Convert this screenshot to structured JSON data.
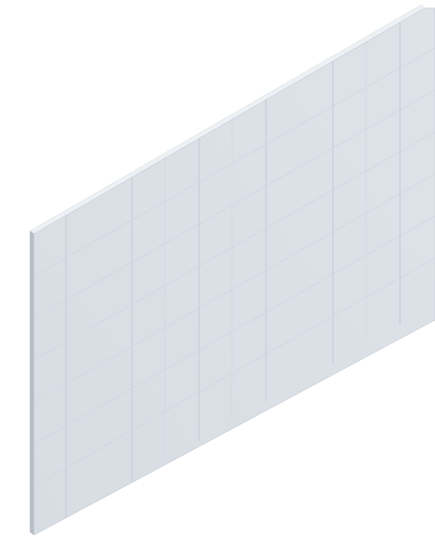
{
  "scene": {
    "object": "wall-panel",
    "view": "isometric",
    "colors": {
      "background": "#ffffff",
      "face": "#d9dfe5",
      "face_light": "#e4e9ee",
      "top_edge": "#eef1f4",
      "side_edge": "#b8bec5",
      "grid_line": "#c9d0d8"
    }
  }
}
